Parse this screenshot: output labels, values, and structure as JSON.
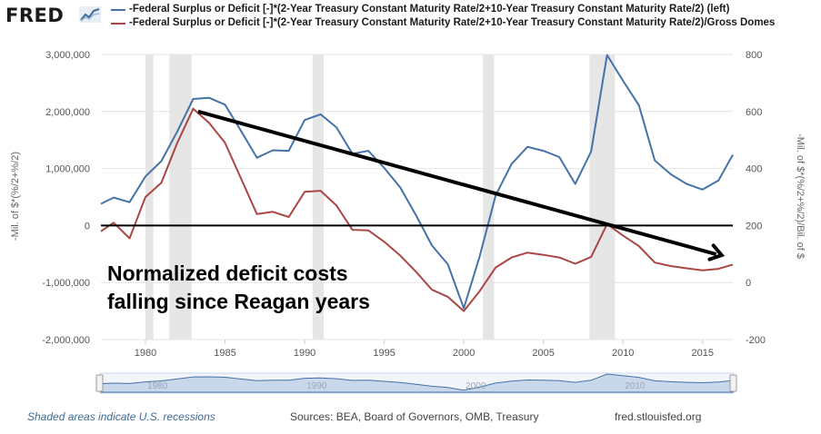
{
  "brand": {
    "logo_text": "FRED"
  },
  "legend": [
    {
      "label": "-Federal Surplus or Deficit [-]*(2-Year Treasury Constant Maturity Rate/2+10-Year Treasury Constant Maturity Rate/2) (left)",
      "color": "#4572a7"
    },
    {
      "label": "-Federal Surplus or Deficit [-]*(2-Year Treasury Constant Maturity Rate/2+10-Year Treasury Constant Maturity Rate/2)/Gross Domes",
      "color": "#aa4643"
    }
  ],
  "footer": {
    "recession_note": "Shaded areas indicate U.S. recessions",
    "sources": "Sources: BEA, Board of Governors, OMB, Treasury",
    "site": "fred.stlouisfed.org"
  },
  "annotation": {
    "line1": "Normalized deficit costs",
    "line2": "falling since Reagan years"
  },
  "chart_data": {
    "type": "line",
    "ylabel_left": "-Mil. of $*(%/2+%/2)",
    "ylabel_right": "-Mil. of $*(%/2+%/2)/Bil. of $",
    "xlim": [
      1977.2,
      2016.9
    ],
    "ylim_left": [
      -2000000,
      3000000
    ],
    "ylim_right": [
      -200,
      800
    ],
    "x_ticks": [
      1980,
      1985,
      1990,
      1995,
      2000,
      2005,
      2010,
      2015
    ],
    "y_ticks_left": [
      "-2,000,000",
      "-1,000,000",
      "0",
      "1,000,000",
      "2,000,000",
      "3,000,000"
    ],
    "y_ticks_left_values": [
      -2000000,
      -1000000,
      0,
      1000000,
      2000000,
      3000000
    ],
    "y_ticks_right": [
      "-200",
      "0",
      "200",
      "400",
      "600",
      "800"
    ],
    "y_ticks_right_values": [
      -200,
      0,
      200,
      400,
      600,
      800
    ],
    "recessions": [
      [
        1980.0,
        1980.5
      ],
      [
        1981.5,
        1982.9
      ],
      [
        1990.5,
        1991.2
      ],
      [
        2001.2,
        2001.9
      ],
      [
        2007.9,
        2009.5
      ]
    ],
    "series": [
      {
        "name": "-Federal Surplus or Deficit [-]*(2-Year Treasury Constant Maturity Rate/2+10-Year Treasury Constant Maturity Rate/2) (left)",
        "axis": "left",
        "color": "#4572a7",
        "x": [
          1977.2,
          1978,
          1979,
          1980,
          1981,
          1982,
          1983,
          1984,
          1985,
          1986,
          1987,
          1988,
          1989,
          1990,
          1991,
          1992,
          1993,
          1994,
          1995,
          1996,
          1997,
          1998,
          1999,
          2000,
          2001,
          2002,
          2003,
          2004,
          2005,
          2006,
          2007,
          2008,
          2009,
          2010,
          2011,
          2012,
          2013,
          2014,
          2015,
          2016,
          2016.9
        ],
        "values": [
          380000,
          490000,
          410000,
          860000,
          1130000,
          1650000,
          2220000,
          2240000,
          2120000,
          1660000,
          1190000,
          1320000,
          1310000,
          1850000,
          1950000,
          1720000,
          1260000,
          1310000,
          1010000,
          670000,
          180000,
          -350000,
          -680000,
          -1450000,
          -540000,
          530000,
          1080000,
          1380000,
          1310000,
          1200000,
          730000,
          1300000,
          2990000,
          2540000,
          2110000,
          1140000,
          900000,
          730000,
          630000,
          790000,
          1240000
        ]
      },
      {
        "name": "-Federal Surplus or Deficit [-]*(2-Year Treasury Constant Maturity Rate/2+10-Year Treasury Constant Maturity Rate/2)/Gross Domes",
        "axis": "right",
        "color": "#aa4643",
        "x": [
          1977.2,
          1978,
          1979,
          1980,
          1981,
          1982,
          1983,
          1984,
          1985,
          1986,
          1987,
          1988,
          1989,
          1990,
          1991,
          1992,
          1993,
          1994,
          1995,
          1996,
          1997,
          1998,
          1999,
          2000,
          2001,
          2002,
          2003,
          2004,
          2005,
          2006,
          2007,
          2008,
          2009,
          2010,
          2011,
          2012,
          2013,
          2014,
          2015,
          2016,
          2016.9
        ],
        "values": [
          180,
          210,
          155,
          300,
          350,
          490,
          610,
          560,
          490,
          365,
          240,
          248,
          230,
          318,
          322,
          270,
          185,
          183,
          143,
          95,
          38,
          -25,
          -50,
          -100,
          -30,
          53,
          88,
          105,
          97,
          88,
          66,
          90,
          205,
          165,
          128,
          70,
          58,
          50,
          43,
          48,
          63
        ]
      }
    ],
    "reference_line": {
      "y_left": 0
    },
    "trend_arrow": {
      "from": [
        1983.3,
        2000000
      ],
      "to": [
        2016.2,
        -520000
      ]
    }
  }
}
